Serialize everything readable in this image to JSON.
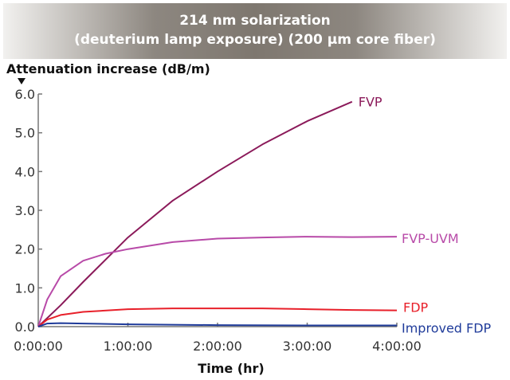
{
  "chart_data": {
    "type": "line",
    "title_line1": "214 nm solarization",
    "title_line2": "(deuterium lamp exposure) (200 µm core fiber)",
    "ylabel": "Attenuation increase (dB/m)",
    "xlabel": "Time (hr)",
    "xlim": [
      0,
      4
    ],
    "ylim": [
      0,
      6
    ],
    "x_ticks": [
      "0:00:00",
      "1:00:00",
      "2:00:00",
      "3:00:00",
      "4:00:00"
    ],
    "y_ticks": [
      "0.0",
      "1.0",
      "2.0",
      "3.0",
      "4.0",
      "5.0",
      "6.0"
    ],
    "grid": false,
    "series": [
      {
        "name": "FVP",
        "color": "#8b1a5a",
        "x": [
          0,
          0.25,
          0.5,
          1,
          1.5,
          2,
          2.5,
          3,
          3.5
        ],
        "y": [
          0,
          0.55,
          1.15,
          2.3,
          3.25,
          4.0,
          4.7,
          5.3,
          5.8
        ]
      },
      {
        "name": "FVP-UVM",
        "color": "#b84aa8",
        "x": [
          0,
          0.1,
          0.25,
          0.5,
          0.75,
          1,
          1.5,
          2,
          2.5,
          3,
          3.5,
          4
        ],
        "y": [
          0,
          0.7,
          1.3,
          1.7,
          1.88,
          2.0,
          2.18,
          2.27,
          2.3,
          2.32,
          2.31,
          2.32
        ]
      },
      {
        "name": "FDP",
        "color": "#e8202a",
        "x": [
          0,
          0.1,
          0.25,
          0.5,
          1,
          1.5,
          2,
          2.5,
          3,
          3.5,
          4
        ],
        "y": [
          0,
          0.18,
          0.3,
          0.38,
          0.45,
          0.47,
          0.47,
          0.47,
          0.45,
          0.43,
          0.42
        ]
      },
      {
        "name": "Improved FDP",
        "color": "#1f3b9a",
        "x": [
          0,
          0.1,
          0.25,
          0.5,
          1,
          2,
          3,
          4
        ],
        "y": [
          0,
          0.08,
          0.09,
          0.08,
          0.06,
          0.04,
          0.03,
          0.03
        ]
      }
    ]
  }
}
